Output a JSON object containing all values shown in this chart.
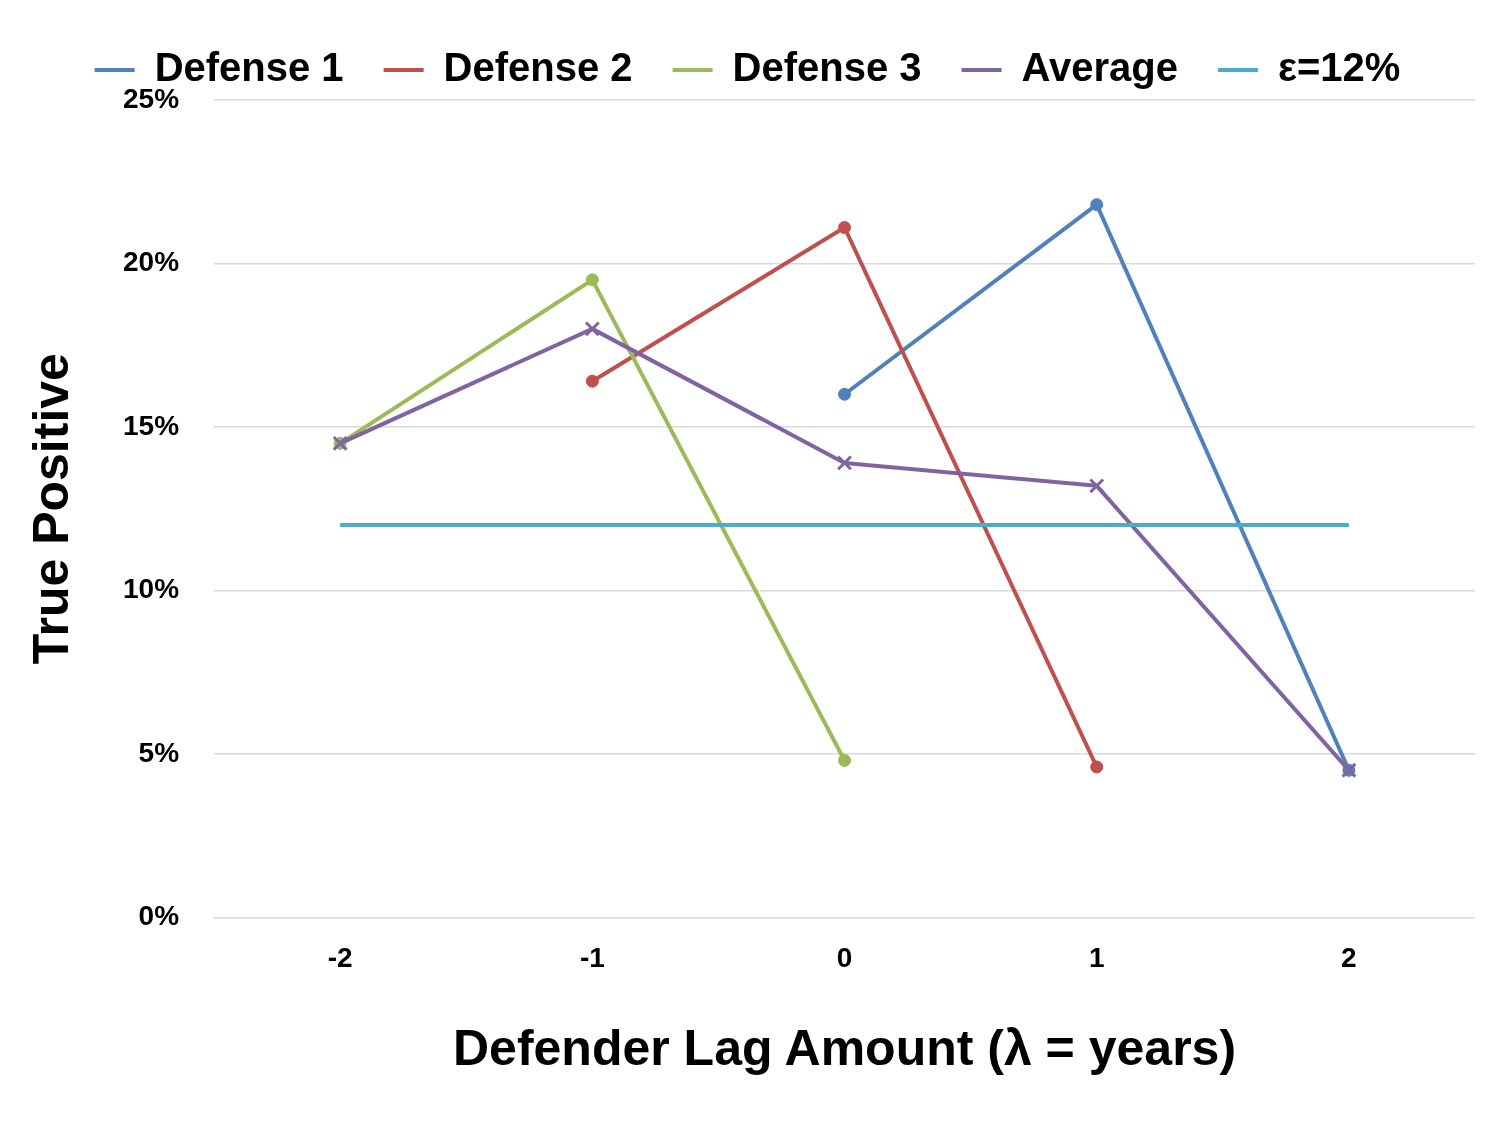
{
  "chart_data": {
    "type": "line",
    "xlabel": "Defender Lag Amount (λ = years)",
    "ylabel": "True Positive",
    "categories": [
      "-2",
      "-1",
      "0",
      "1",
      "2"
    ],
    "series": [
      {
        "name": "Defense 1",
        "color": "#4f81bd",
        "marker": "circle",
        "values": [
          null,
          null,
          16,
          21.8,
          4.5
        ]
      },
      {
        "name": "Defense 2",
        "color": "#c0504d",
        "marker": "circle",
        "values": [
          null,
          16.4,
          21.1,
          4.6,
          null
        ]
      },
      {
        "name": "Defense 3",
        "color": "#9bbb59",
        "marker": "circle",
        "values": [
          14.5,
          19.5,
          4.8,
          null,
          null
        ]
      },
      {
        "name": "Average",
        "color": "#8064a2",
        "marker": "cross",
        "values": [
          14.5,
          18,
          13.9,
          13.2,
          4.5
        ]
      },
      {
        "name": "ε=12%",
        "color": "#4bacc6",
        "marker": "none",
        "values": [
          12,
          12,
          12,
          12,
          12
        ]
      }
    ],
    "ylim": [
      0,
      25
    ],
    "yticks": [
      {
        "value": 0,
        "label": "0%"
      },
      {
        "value": 5,
        "label": "5%"
      },
      {
        "value": 10,
        "label": "10%"
      },
      {
        "value": 15,
        "label": "15%"
      },
      {
        "value": 20,
        "label": "20%"
      },
      {
        "value": 25,
        "label": "25%"
      }
    ],
    "grid": "y",
    "legend": "top",
    "line_style": "solid"
  }
}
